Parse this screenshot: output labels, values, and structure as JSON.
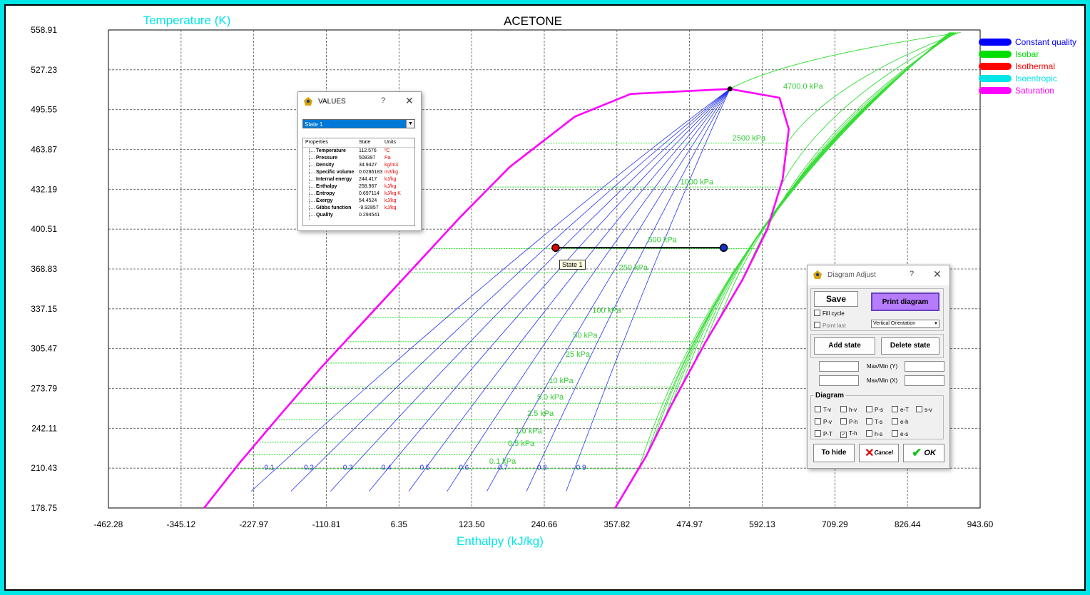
{
  "chart_data": {
    "type": "line",
    "title": "ACETONE",
    "xlabel": "Enthalpy (kJ/kg)",
    "ylabel": "Temperature (K)",
    "xlim": [
      -462.28,
      943.6
    ],
    "ylim": [
      178.75,
      558.91
    ],
    "x_ticks": [
      "-462.28",
      "-345.12",
      "-227.97",
      "-110.81",
      "6.35",
      "123.50",
      "240.66",
      "357.82",
      "474.97",
      "592.13",
      "709.29",
      "826.44",
      "943.60"
    ],
    "y_ticks": [
      "558.91",
      "527.23",
      "495.55",
      "463.87",
      "432.19",
      "400.51",
      "368.83",
      "337.15",
      "305.47",
      "273.79",
      "242.11",
      "210.43",
      "178.75"
    ],
    "grid": true,
    "legend_position": "top-right",
    "legend": [
      {
        "name": "Constant quality",
        "color": "#0000ff"
      },
      {
        "name": "Isobar",
        "color": "#00dd00"
      },
      {
        "name": "Isothermal",
        "color": "#ff0000"
      },
      {
        "name": "Isoentropic",
        "color": "#00e5e5"
      },
      {
        "name": "Saturation",
        "color": "#ff00ff"
      }
    ],
    "saturation": {
      "liquid": [
        [
          -308,
          178.75
        ],
        [
          -250,
          215
        ],
        [
          -190,
          250
        ],
        [
          -120,
          290
        ],
        [
          -45,
          330
        ],
        [
          30,
          370
        ],
        [
          105,
          410
        ],
        [
          185,
          450
        ],
        [
          290,
          490
        ],
        [
          380,
          508
        ],
        [
          540,
          512
        ]
      ],
      "vapor": [
        [
          540,
          512
        ],
        [
          620,
          505
        ],
        [
          635,
          480
        ],
        [
          625,
          440
        ],
        [
          600,
          400
        ],
        [
          560,
          360
        ],
        [
          500,
          310
        ],
        [
          445,
          260
        ],
        [
          405,
          220
        ],
        [
          355,
          178.75
        ]
      ]
    },
    "critical_point": [
      540,
      512
    ],
    "quality_lines": [
      {
        "label": "0.1",
        "x_low": -232,
        "y_low": 192,
        "x_label": -211
      },
      {
        "label": "0.2",
        "x_low": -168,
        "y_low": 192,
        "x_label": -147
      },
      {
        "label": "0.3",
        "x_low": -104,
        "y_low": 192,
        "x_label": -84
      },
      {
        "label": "0.4",
        "x_low": -42,
        "y_low": 192,
        "x_label": -22
      },
      {
        "label": "0.5",
        "x_low": 22,
        "y_low": 192,
        "x_label": 40
      },
      {
        "label": "0.6",
        "x_low": 84,
        "y_low": 192,
        "x_label": 103
      },
      {
        "label": "0.7",
        "x_low": 148,
        "y_low": 192,
        "x_label": 166
      },
      {
        "label": "0.8",
        "x_low": 212,
        "y_low": 192,
        "x_label": 229
      },
      {
        "label": "0.9",
        "x_low": 276,
        "y_low": 192,
        "x_label": 292
      }
    ],
    "isobars": [
      {
        "label": "4700.0 kPa",
        "T": 512,
        "lx": 626,
        "ly": 512
      },
      {
        "label": "2500 kPa",
        "T": 469,
        "lx": 544,
        "ly": 471
      },
      {
        "label": "1000 kPa",
        "T": 434,
        "lx": 460,
        "ly": 436
      },
      {
        "label": "500 kPa",
        "T": 385,
        "lx": 408,
        "ly": 390
      },
      {
        "label": "250 kPa",
        "T": 366,
        "lx": 361,
        "ly": 368
      },
      {
        "label": "100 kPa",
        "T": 330,
        "lx": 318,
        "ly": 334
      },
      {
        "label": "50 kPa",
        "T": 311,
        "lx": 287,
        "ly": 314
      },
      {
        "label": "25 kPa",
        "T": 294,
        "lx": 275,
        "ly": 299
      },
      {
        "label": "10 kPa",
        "T": 275,
        "lx": 248,
        "ly": 278
      },
      {
        "label": "5.0 kPa",
        "T": 262,
        "lx": 229,
        "ly": 265
      },
      {
        "label": "2.5 kPa",
        "T": 249,
        "lx": 213,
        "ly": 252
      },
      {
        "label": "1.0 kPa",
        "T": 231,
        "lx": 194,
        "ly": 238
      },
      {
        "label": "0.5 kPa",
        "T": 221,
        "lx": 182,
        "ly": 228
      },
      {
        "label": "0.1 kPa",
        "T": 210,
        "lx": 152,
        "ly": 214
      }
    ],
    "process": {
      "from": {
        "x": 258.97,
        "T": 385.7
      },
      "to": {
        "x": 530,
        "T": 385.7
      }
    }
  },
  "values_window": {
    "title": "VALUES",
    "help": "?",
    "close": "✕",
    "selected_state": "State 1",
    "dropdown_arrow": "▼",
    "headers": [
      "Properties",
      "State",
      "Units"
    ],
    "rows": [
      {
        "name": "Temperature",
        "value": "112.576",
        "unit": "ºC"
      },
      {
        "name": "Pressure",
        "value": "508397",
        "unit": "Pa"
      },
      {
        "name": "Density",
        "value": "34.9427",
        "unit": "kg/m3"
      },
      {
        "name": "Specific volume",
        "value": "0.0286183",
        "unit": "m3/kg"
      },
      {
        "name": "Internal energy",
        "value": "244.417",
        "unit": "kJ/kg"
      },
      {
        "name": "Enthalpy",
        "value": "258.967",
        "unit": "kJ/kg"
      },
      {
        "name": "Entropy",
        "value": "0.697114",
        "unit": "kJ/kg K"
      },
      {
        "name": "Exergy",
        "value": "54.4524",
        "unit": "kJ/kg"
      },
      {
        "name": "Gibbs function",
        "value": "-9.92857",
        "unit": "kJ/kg"
      },
      {
        "name": "Quality",
        "value": "0.294541",
        "unit": ""
      }
    ]
  },
  "state_tooltip": "State 1",
  "adjust_window": {
    "title": "Diagram Adjust",
    "help": "?",
    "close": "✕",
    "save_label": "Save",
    "print_label": "Print diagram",
    "fill_cycle_label": "Fill cycle",
    "point_last_label": "Point last",
    "orientation": "Vertical Orientation",
    "add_state_label": "Add state",
    "delete_state_label": "Delete state",
    "maxmin_y_label": "Max/Min (Y)",
    "maxmin_x_label": "Max/Min (X)",
    "diagram_group_label": "Diagram",
    "diagram_options": [
      {
        "label": "T-v",
        "checked": false
      },
      {
        "label": "h-v",
        "checked": false
      },
      {
        "label": "P-s",
        "checked": false
      },
      {
        "label": "e-T",
        "checked": false
      },
      {
        "label": "s-v",
        "checked": false
      },
      {
        "label": "P-v",
        "checked": false
      },
      {
        "label": "P-h",
        "checked": false
      },
      {
        "label": "T-s",
        "checked": false
      },
      {
        "label": "e-h",
        "checked": false
      },
      {
        "label": "P-T",
        "checked": false
      },
      {
        "label": "T-h",
        "checked": true
      },
      {
        "label": "h-s",
        "checked": false
      },
      {
        "label": "e-s",
        "checked": false
      }
    ],
    "hide_label": "To hide",
    "cancel_label": "Cancel",
    "ok_label": "OK",
    "accent_purple": "#b57cff"
  }
}
